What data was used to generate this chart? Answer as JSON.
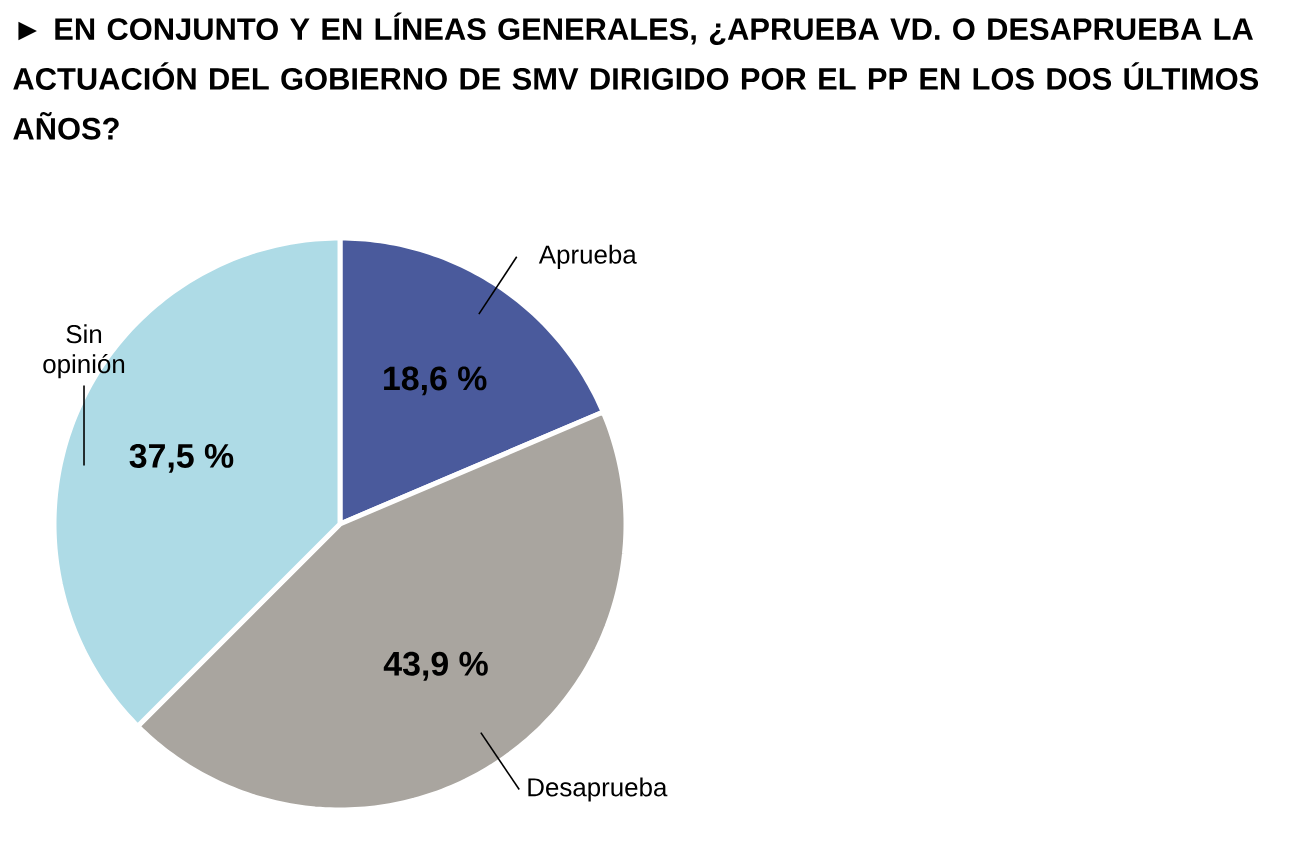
{
  "chart_data": {
    "type": "pie",
    "title": "► EN CONJUNTO Y EN LÍNEAS GENERALES, ¿APRUEBA VD. O DESAPRUEBA LA ACTUACIÓN DEL GOBIERNO DE SMV DIRIGIDO POR EL PP EN LOS DOS ÚLTIMOS AÑOS?",
    "categories": [
      "Aprueba",
      "Desaprueba",
      "Sin opinión"
    ],
    "values": [
      18.6,
      43.9,
      37.5
    ],
    "value_labels": [
      "18,6 %",
      "43,9 %",
      "37,5 %"
    ],
    "colors": [
      "#4a5a9c",
      "#a9a59f",
      "#aedbe6"
    ]
  }
}
